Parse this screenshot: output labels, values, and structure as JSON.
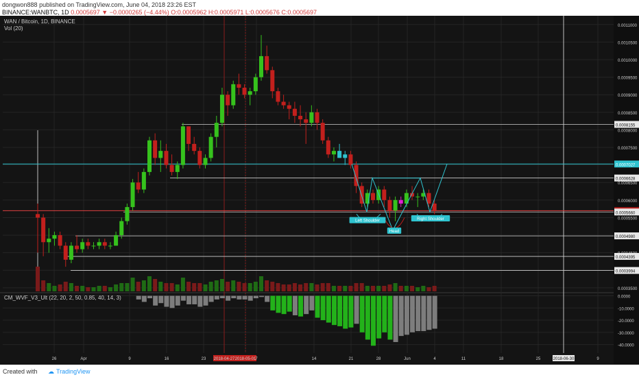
{
  "header": {
    "user": "dongwon888",
    "published": " published on TradingView.com, June 04, 2018 23:26 EST",
    "symbol_line_prefix": "BINANCE:WANBTC, 1D",
    "close_change": "0.0005697",
    "change": "−0.0000265 (−4.44%)",
    "ohlc": "O:0.0005962 H:0.0005971 L:0.0005676 C:0.0005697"
  },
  "legend": {
    "pair": "WAN / Bitcoin, 1D, BINANCE",
    "vol": "Vol (20)",
    "indicator": "CM_WVF_V3_Ult (22, 20, 2, 50, 0.85, 40, 14, 3)"
  },
  "footer": {
    "created_with": "Created with",
    "brand": "TradingView"
  },
  "chart_data": {
    "type": "candlestick",
    "price_axis_labels": [
      "0.0011000",
      "0.0010500",
      "0.0010000",
      "0.0009500",
      "0.0009000",
      "0.0008500",
      "0.0008000",
      "0.0007500",
      "0.0007000",
      "0.0006500",
      "0.0006000",
      "0.0005500",
      "0.0005000",
      "0.0004500",
      "0.0004000",
      "0.0003500"
    ],
    "price_ticks": [
      0.0011,
      0.00105,
      0.001,
      0.00095,
      0.0009,
      0.00085,
      0.0008,
      0.00075,
      0.0007,
      0.00065,
      0.0006,
      0.00055,
      0.0005,
      0.00045,
      0.0004,
      0.00035
    ],
    "level_labels": [
      {
        "price": 0.0008155,
        "text": "0.0008155",
        "kind": "white"
      },
      {
        "price": 0.0007027,
        "text": "0.0007027",
        "kind": "cyan"
      },
      {
        "price": 0.0006628,
        "text": "0.0006628",
        "kind": "white"
      },
      {
        "price": 0.0005697,
        "text": "0.0005697",
        "kind": "red"
      },
      {
        "price": 0.000566,
        "text": "0.0005660",
        "kind": "white"
      },
      {
        "price": 0.000498,
        "text": "0.0004980",
        "kind": "white"
      },
      {
        "price": 0.0004395,
        "text": "0.0004395",
        "kind": "white"
      },
      {
        "price": 0.0003994,
        "text": "0.0003994",
        "kind": "white"
      }
    ],
    "indicator_axis_labels": [
      "0.0000",
      "-10.0000",
      "-20.0000",
      "-30.0000",
      "-40.0000"
    ],
    "indicator_ticks": [
      0,
      -10,
      -20,
      -30,
      -40
    ],
    "x_labels": [
      "26",
      "Apr",
      "9",
      "16",
      "23",
      "2018-04-27",
      "2018-05-01",
      "7",
      "14",
      "21",
      "28",
      "Jun",
      "4",
      "11",
      "18",
      "25",
      "2018-06-30",
      "9"
    ],
    "annotations": [
      "Left Shoulder",
      "Head",
      "Right Shoulder"
    ],
    "candles": [
      [
        0.00056,
        0.00059,
        0.00045,
        0.00055
      ],
      [
        0.00055,
        0.00056,
        0.00044,
        0.00048
      ],
      [
        0.00048,
        0.00052,
        0.00045,
        0.00049
      ],
      [
        0.00049,
        0.00051,
        0.00047,
        0.0005
      ],
      [
        0.0005,
        0.00051,
        0.00046,
        0.00047
      ],
      [
        0.00047,
        0.00048,
        0.00041,
        0.00043
      ],
      [
        0.00043,
        0.00048,
        0.00042,
        0.00047
      ],
      [
        0.00047,
        0.0005,
        0.00045,
        0.00046
      ],
      [
        0.00046,
        0.00049,
        0.00045,
        0.00048
      ],
      [
        0.00048,
        0.00049,
        0.00046,
        0.00047
      ],
      [
        0.00047,
        0.00048,
        0.00046,
        0.00047
      ],
      [
        0.00047,
        0.00049,
        0.00046,
        0.00048
      ],
      [
        0.00048,
        0.00049,
        0.00046,
        0.00047
      ],
      [
        0.00047,
        0.00048,
        0.00046,
        0.00047
      ],
      [
        0.00047,
        0.00051,
        0.00047,
        0.0005
      ],
      [
        0.0005,
        0.00055,
        0.00049,
        0.00054
      ],
      [
        0.00054,
        0.00059,
        0.00053,
        0.00058
      ],
      [
        0.00058,
        0.00066,
        0.00057,
        0.00065
      ],
      [
        0.00065,
        0.00068,
        0.00062,
        0.00063
      ],
      [
        0.00063,
        0.00069,
        0.00062,
        0.00068
      ],
      [
        0.00068,
        0.00078,
        0.00067,
        0.00077
      ],
      [
        0.00077,
        0.00079,
        0.0007,
        0.00072
      ],
      [
        0.00072,
        0.00077,
        0.00068,
        0.00074
      ],
      [
        0.00074,
        0.00076,
        0.00069,
        0.0007
      ],
      [
        0.0007,
        0.00073,
        0.00067,
        0.00068
      ],
      [
        0.00068,
        0.00071,
        0.00066,
        0.0007
      ],
      [
        0.0007,
        0.00082,
        0.00069,
        0.00081
      ],
      [
        0.00081,
        0.00081,
        0.00074,
        0.00076
      ],
      [
        0.00076,
        0.00078,
        0.00073,
        0.00074
      ],
      [
        0.00074,
        0.00075,
        0.00069,
        0.0007
      ],
      [
        0.0007,
        0.00073,
        0.00069,
        0.00072
      ],
      [
        0.00072,
        0.00079,
        0.00071,
        0.00078
      ],
      [
        0.00078,
        0.00084,
        0.00075,
        0.00082
      ],
      [
        0.00082,
        0.00092,
        0.00081,
        0.0009
      ],
      [
        0.0009,
        0.00091,
        0.00084,
        0.00087
      ],
      [
        0.00087,
        0.00094,
        0.00086,
        0.00093
      ],
      [
        0.00093,
        0.00096,
        0.0009,
        0.00092
      ],
      [
        0.00092,
        0.00093,
        0.00089,
        0.0009
      ],
      [
        0.0009,
        0.00092,
        0.00087,
        0.00091
      ],
      [
        0.00091,
        0.00096,
        0.0009,
        0.00095
      ],
      [
        0.00095,
        0.00107,
        0.00094,
        0.00101
      ],
      [
        0.00101,
        0.00104,
        0.00096,
        0.00097
      ],
      [
        0.00097,
        0.00098,
        0.00089,
        0.00091
      ],
      [
        0.00091,
        0.00092,
        0.00087,
        0.00088
      ],
      [
        0.00088,
        0.0009,
        0.00086,
        0.00087
      ],
      [
        0.00087,
        0.00088,
        0.00083,
        0.00086
      ],
      [
        0.00086,
        0.00088,
        0.00082,
        0.00084
      ],
      [
        0.00084,
        0.00087,
        0.00081,
        0.00083
      ],
      [
        0.00083,
        0.00085,
        0.00076,
        0.00082
      ],
      [
        0.00082,
        0.00087,
        0.00081,
        0.00085
      ],
      [
        0.00085,
        0.00086,
        0.0008,
        0.00082
      ],
      [
        0.00082,
        0.00083,
        0.00076,
        0.00077
      ],
      [
        0.00077,
        0.00078,
        0.00072,
        0.00073
      ],
      [
        0.00073,
        0.00075,
        0.00071,
        0.00074
      ],
      [
        0.00074,
        0.00076,
        0.00072,
        0.00072
      ],
      [
        0.00072,
        0.00074,
        0.0007,
        0.00073
      ],
      [
        0.00073,
        0.00074,
        0.00069,
        0.0007
      ],
      [
        0.0007,
        0.00071,
        0.00062,
        0.00064
      ],
      [
        0.00064,
        0.00065,
        0.00058,
        0.00059
      ],
      [
        0.00059,
        0.00063,
        0.00058,
        0.00062
      ],
      [
        0.00062,
        0.00063,
        0.00059,
        0.0006
      ],
      [
        0.0006,
        0.00064,
        0.00059,
        0.00063
      ],
      [
        0.00063,
        0.00064,
        0.00058,
        0.0006
      ],
      [
        0.0006,
        0.00061,
        0.00055,
        0.00057
      ],
      [
        0.00057,
        0.00061,
        0.00054,
        0.0006
      ],
      [
        0.0006,
        0.00061,
        0.00058,
        0.00059
      ],
      [
        0.00059,
        0.00063,
        0.00058,
        0.00062
      ],
      [
        0.00062,
        0.00064,
        0.0006,
        0.00061
      ],
      [
        0.00061,
        0.00062,
        0.00058,
        0.00061
      ],
      [
        0.00061,
        0.00063,
        0.0006,
        0.00062
      ],
      [
        0.00062,
        0.00063,
        0.00058,
        0.00059
      ],
      [
        0.00059,
        0.0006,
        0.00056,
        0.00057
      ]
    ],
    "volumes": [
      0.9,
      0.4,
      0.3,
      0.2,
      0.25,
      0.35,
      0.3,
      0.2,
      0.2,
      0.15,
      0.15,
      0.2,
      0.2,
      0.15,
      0.25,
      0.3,
      0.3,
      0.5,
      0.35,
      0.4,
      0.55,
      0.45,
      0.35,
      0.3,
      0.3,
      0.25,
      0.5,
      0.35,
      0.3,
      0.3,
      0.25,
      0.35,
      0.4,
      0.45,
      0.35,
      0.4,
      0.35,
      0.3,
      0.3,
      0.35,
      0.55,
      0.4,
      0.35,
      0.3,
      0.25,
      0.25,
      0.3,
      0.25,
      0.3,
      0.3,
      0.25,
      0.3,
      0.3,
      0.2,
      0.2,
      0.2,
      0.2,
      0.3,
      0.3,
      0.2,
      0.2,
      0.2,
      0.2,
      0.25,
      0.3,
      0.2,
      0.2,
      0.2,
      0.15,
      0.2,
      0.15,
      0.2
    ],
    "wvf": [
      0,
      0,
      0,
      0,
      0,
      0,
      0,
      0,
      0,
      0,
      0,
      0,
      0,
      0,
      0,
      0,
      0,
      0,
      -3,
      -5,
      -2,
      -8,
      -6,
      -9,
      -10,
      -8,
      -4,
      -7,
      -7,
      -9,
      -8,
      -5,
      -3,
      -2,
      -4,
      -2,
      -3,
      -3,
      -4,
      -2,
      -1,
      -5,
      -12,
      -14,
      -15,
      -13,
      -16,
      -17,
      -15,
      -12,
      -18,
      -20,
      -22,
      -24,
      -25,
      -27,
      -26,
      -23,
      -30,
      -36,
      -41,
      -35,
      -30,
      -36,
      -38,
      -33,
      -32,
      -30,
      -29,
      -29,
      -28,
      -27
    ],
    "wvf_green": [
      false,
      false,
      false,
      false,
      false,
      false,
      false,
      false,
      false,
      false,
      false,
      false,
      false,
      false,
      false,
      false,
      false,
      false,
      false,
      false,
      false,
      false,
      false,
      false,
      false,
      false,
      false,
      false,
      false,
      false,
      false,
      false,
      false,
      false,
      false,
      false,
      false,
      false,
      false,
      false,
      false,
      false,
      true,
      true,
      true,
      true,
      false,
      true,
      false,
      false,
      true,
      true,
      true,
      true,
      true,
      true,
      true,
      false,
      true,
      true,
      true,
      true,
      true,
      true,
      false,
      false,
      false,
      false,
      false,
      false,
      false,
      false
    ]
  },
  "colors": {
    "up": "#36c21d",
    "down": "#c2201d",
    "cyan": "#2fc3cf",
    "magenta": "#e020d0",
    "grid": "#252525",
    "bg": "#141414"
  }
}
